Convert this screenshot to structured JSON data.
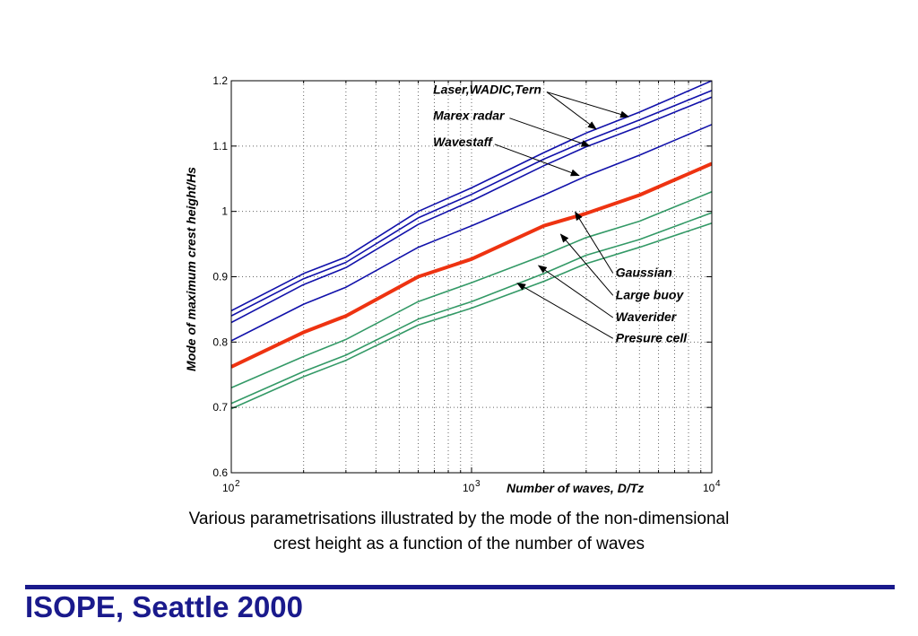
{
  "caption": {
    "line1": "Various parametrisations illustrated by the mode of the non-dimensional",
    "line2": "crest height as a function of the number of waves"
  },
  "footer": {
    "title": "ISOPE, Seattle 2000",
    "color": "#1a1a8c"
  },
  "chart_data": {
    "type": "line",
    "title": "",
    "xlabel": "Number of waves, D/Tz",
    "ylabel": "Mode of maximum crest height/Hs",
    "xscale": "log",
    "xlim": [
      100,
      10000
    ],
    "ylim": [
      0.6,
      1.2
    ],
    "grid": true,
    "x_ticks": [
      {
        "base": "10",
        "exp": "2"
      },
      {
        "base": "10",
        "exp": "3"
      },
      {
        "base": "10",
        "exp": "4"
      }
    ],
    "y_ticks": [
      "0.6",
      "0.7",
      "0.8",
      "0.9",
      "1",
      "1.1",
      "1.2"
    ],
    "x": [
      100,
      200,
      300,
      600,
      1000,
      2000,
      3000,
      5000,
      10000
    ],
    "series": [
      {
        "values": [
          0.848,
          0.905,
          0.93,
          1.0,
          1.036,
          1.09,
          1.12,
          1.152,
          1.2
        ],
        "color": "#1111aa",
        "width": 1.6
      },
      {
        "values": [
          0.84,
          0.897,
          0.922,
          0.99,
          1.026,
          1.08,
          1.108,
          1.14,
          1.185
        ],
        "color": "#1111aa",
        "width": 1.6
      },
      {
        "values": [
          0.83,
          0.888,
          0.914,
          0.98,
          1.016,
          1.07,
          1.099,
          1.13,
          1.175
        ],
        "color": "#1111aa",
        "width": 1.6
      },
      {
        "values": [
          0.802,
          0.858,
          0.884,
          0.945,
          0.978,
          1.025,
          1.054,
          1.086,
          1.133
        ],
        "color": "#1111aa",
        "width": 1.6
      },
      {
        "values": [
          0.762,
          0.815,
          0.84,
          0.9,
          0.927,
          0.978,
          0.997,
          1.025,
          1.073
        ],
        "color": "#ee3311",
        "width": 4
      },
      {
        "values": [
          0.73,
          0.778,
          0.804,
          0.862,
          0.891,
          0.933,
          0.96,
          0.985,
          1.03
        ],
        "color": "#339966",
        "width": 1.6
      },
      {
        "values": [
          0.706,
          0.755,
          0.78,
          0.835,
          0.862,
          0.905,
          0.933,
          0.957,
          0.998
        ],
        "color": "#339966",
        "width": 1.6
      },
      {
        "values": [
          0.698,
          0.747,
          0.772,
          0.826,
          0.852,
          0.893,
          0.92,
          0.945,
          0.982
        ],
        "color": "#339966",
        "width": 1.6
      }
    ],
    "annotations": [
      {
        "text": "Laser,WADIC,Tern",
        "ax": 0.42,
        "ay": 1.18,
        "targets": [
          [
            4500,
            1.145
          ],
          [
            3300,
            1.126
          ]
        ]
      },
      {
        "text": "Marex radar",
        "ax": 0.42,
        "ay": 1.14,
        "targets": [
          [
            3100,
            1.1
          ]
        ]
      },
      {
        "text": "Wavestaff",
        "ax": 0.42,
        "ay": 1.1,
        "targets": [
          [
            2800,
            1.055
          ]
        ]
      },
      {
        "text": "Gaussian",
        "ax": 0.8,
        "ay": 0.9,
        "targets": [
          [
            2700,
            0.999
          ]
        ]
      },
      {
        "text": "Large buoy",
        "ax": 0.8,
        "ay": 0.866,
        "targets": [
          [
            2350,
            0.965
          ]
        ]
      },
      {
        "text": "Waverider",
        "ax": 0.8,
        "ay": 0.832,
        "targets": [
          [
            1900,
            0.917
          ]
        ]
      },
      {
        "text": "Presure cell",
        "ax": 0.8,
        "ay": 0.8,
        "targets": [
          [
            1550,
            0.89
          ]
        ]
      }
    ]
  }
}
